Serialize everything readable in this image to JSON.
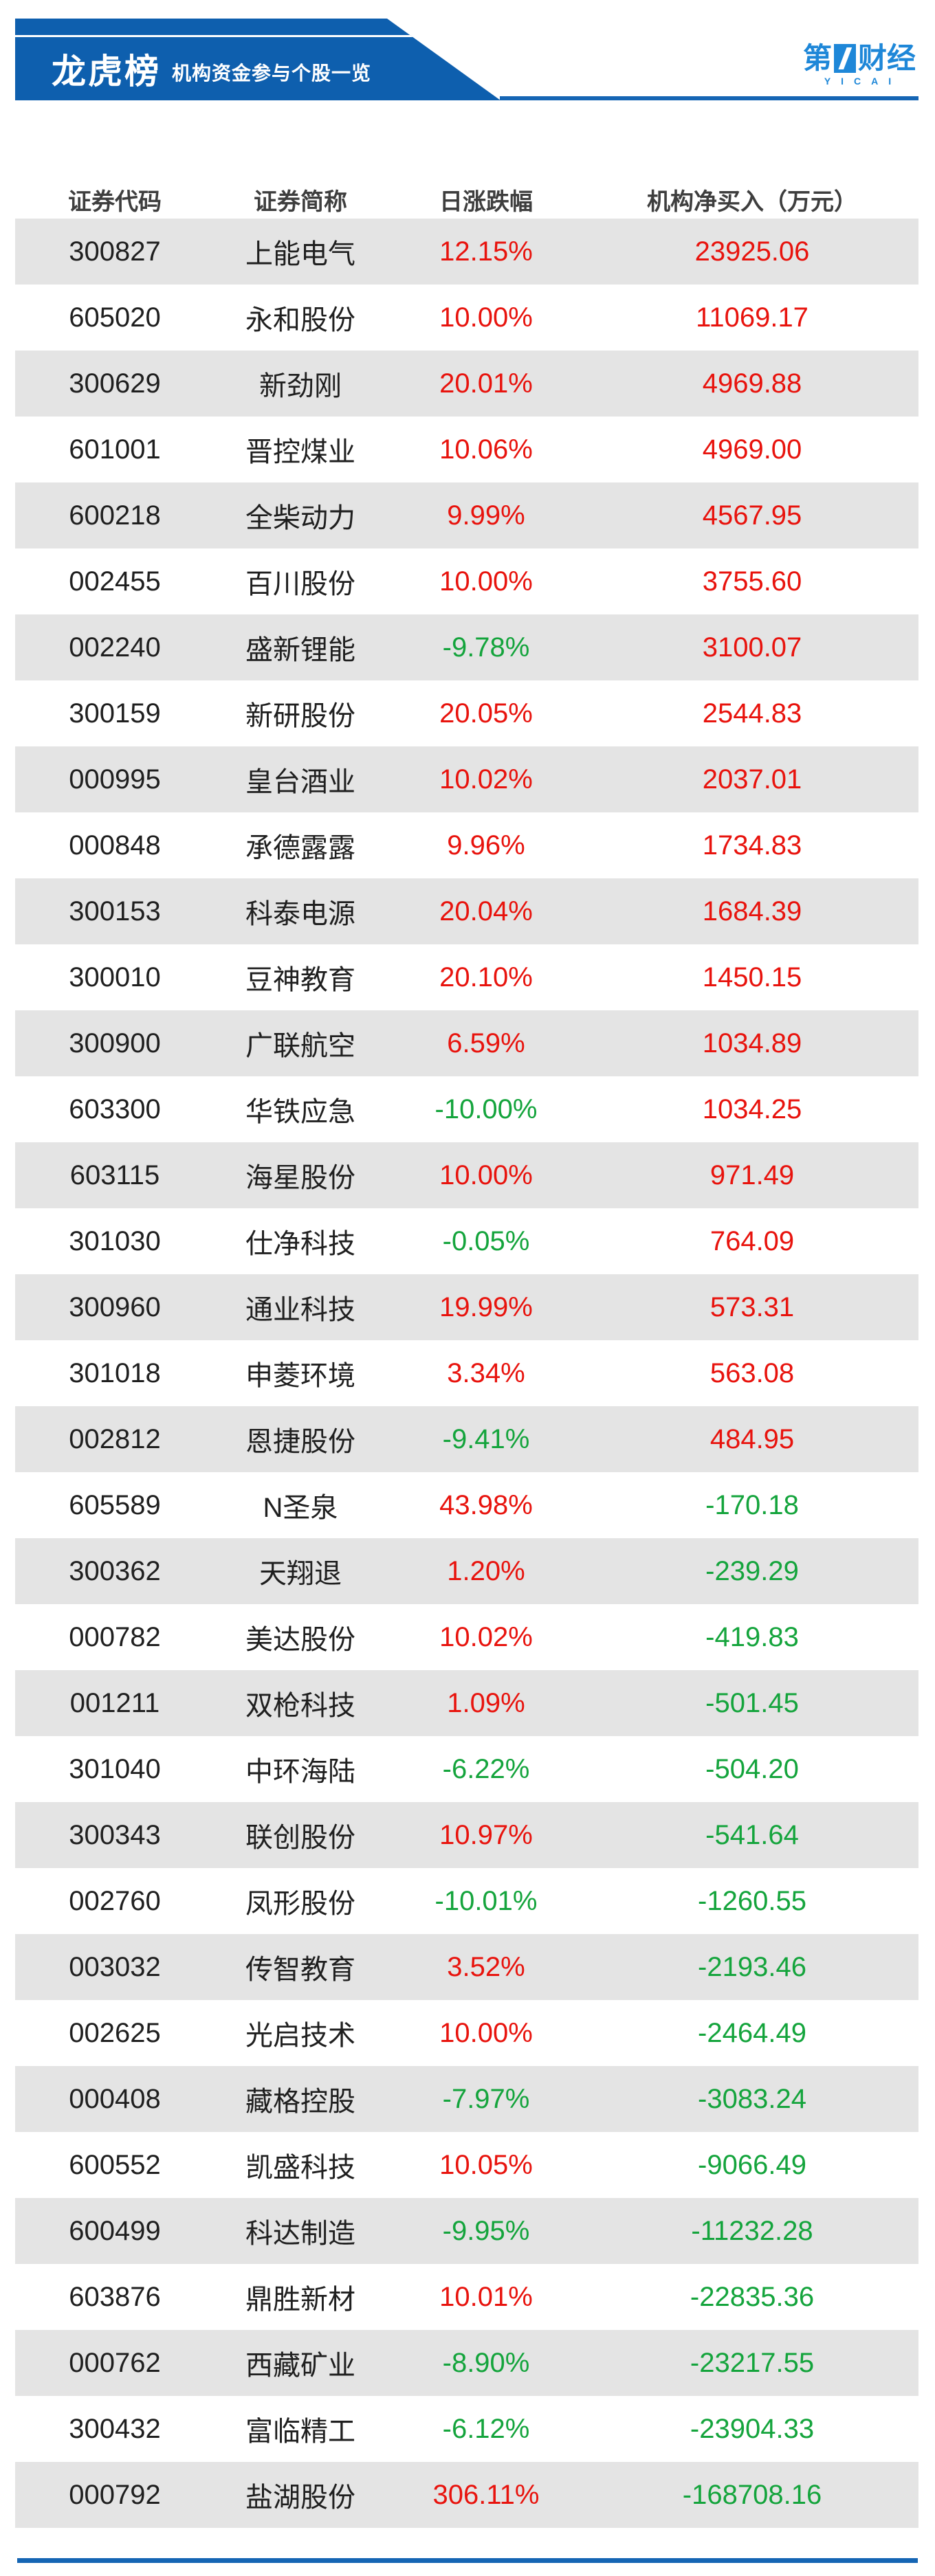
{
  "colors": {
    "banner_blue": "#0e5fae",
    "logo_blue": "#1e87d8",
    "divider_blue": "#1565b4",
    "row_gray": "#e4e4e4",
    "up_red": "#e8130d",
    "down_green": "#14a43c",
    "header_text": "#3e3e3e",
    "body_text": "#1f1f1f"
  },
  "banner": {
    "title": "龙虎榜",
    "subtitle": "机构资金参与个股一览"
  },
  "logo": {
    "text_prefix": "第",
    "text_suffix": "财经",
    "caption": "YICAI"
  },
  "chart_data": {
    "type": "table",
    "title": "龙虎榜",
    "subtitle": "机构资金参与个股一览",
    "columns": [
      "证券代码",
      "证券简称",
      "日涨跌幅",
      "机构净买入（万元）"
    ],
    "rows": [
      {
        "code": "300827",
        "name": "上能电气",
        "pct": "12.15%",
        "net": "23925.06"
      },
      {
        "code": "605020",
        "name": "永和股份",
        "pct": "10.00%",
        "net": "11069.17"
      },
      {
        "code": "300629",
        "name": "新劲刚",
        "pct": "20.01%",
        "net": "4969.88"
      },
      {
        "code": "601001",
        "name": "晋控煤业",
        "pct": "10.06%",
        "net": "4969.00"
      },
      {
        "code": "600218",
        "name": "全柴动力",
        "pct": "9.99%",
        "net": "4567.95"
      },
      {
        "code": "002455",
        "name": "百川股份",
        "pct": "10.00%",
        "net": "3755.60"
      },
      {
        "code": "002240",
        "name": "盛新锂能",
        "pct": "-9.78%",
        "net": "3100.07"
      },
      {
        "code": "300159",
        "name": "新研股份",
        "pct": "20.05%",
        "net": "2544.83"
      },
      {
        "code": "000995",
        "name": "皇台酒业",
        "pct": "10.02%",
        "net": "2037.01"
      },
      {
        "code": "000848",
        "name": "承德露露",
        "pct": "9.96%",
        "net": "1734.83"
      },
      {
        "code": "300153",
        "name": "科泰电源",
        "pct": "20.04%",
        "net": "1684.39"
      },
      {
        "code": "300010",
        "name": "豆神教育",
        "pct": "20.10%",
        "net": "1450.15"
      },
      {
        "code": "300900",
        "name": "广联航空",
        "pct": "6.59%",
        "net": "1034.89"
      },
      {
        "code": "603300",
        "name": "华铁应急",
        "pct": "-10.00%",
        "net": "1034.25"
      },
      {
        "code": "603115",
        "name": "海星股份",
        "pct": "10.00%",
        "net": "971.49"
      },
      {
        "code": "301030",
        "name": "仕净科技",
        "pct": "-0.05%",
        "net": "764.09"
      },
      {
        "code": "300960",
        "name": "通业科技",
        "pct": "19.99%",
        "net": "573.31"
      },
      {
        "code": "301018",
        "name": "申菱环境",
        "pct": "3.34%",
        "net": "563.08"
      },
      {
        "code": "002812",
        "name": "恩捷股份",
        "pct": "-9.41%",
        "net": "484.95"
      },
      {
        "code": "605589",
        "name": "N圣泉",
        "pct": "43.98%",
        "net": "-170.18"
      },
      {
        "code": "300362",
        "name": "天翔退",
        "pct": "1.20%",
        "net": "-239.29"
      },
      {
        "code": "000782",
        "name": "美达股份",
        "pct": "10.02%",
        "net": "-419.83"
      },
      {
        "code": "001211",
        "name": "双枪科技",
        "pct": "1.09%",
        "net": "-501.45"
      },
      {
        "code": "301040",
        "name": "中环海陆",
        "pct": "-6.22%",
        "net": "-504.20"
      },
      {
        "code": "300343",
        "name": "联创股份",
        "pct": "10.97%",
        "net": "-541.64"
      },
      {
        "code": "002760",
        "name": "凤形股份",
        "pct": "-10.01%",
        "net": "-1260.55"
      },
      {
        "code": "003032",
        "name": "传智教育",
        "pct": "3.52%",
        "net": "-2193.46"
      },
      {
        "code": "002625",
        "name": "光启技术",
        "pct": "10.00%",
        "net": "-2464.49"
      },
      {
        "code": "000408",
        "name": "藏格控股",
        "pct": "-7.97%",
        "net": "-3083.24"
      },
      {
        "code": "600552",
        "name": "凯盛科技",
        "pct": "10.05%",
        "net": "-9066.49"
      },
      {
        "code": "600499",
        "name": "科达制造",
        "pct": "-9.95%",
        "net": "-11232.28"
      },
      {
        "code": "603876",
        "name": "鼎胜新材",
        "pct": "10.01%",
        "net": "-22835.36"
      },
      {
        "code": "000762",
        "name": "西藏矿业",
        "pct": "-8.90%",
        "net": "-23217.55"
      },
      {
        "code": "300432",
        "name": "富临精工",
        "pct": "-6.12%",
        "net": "-23904.33"
      },
      {
        "code": "000792",
        "name": "盐湖股份",
        "pct": "306.11%",
        "net": "-168708.16"
      }
    ]
  }
}
